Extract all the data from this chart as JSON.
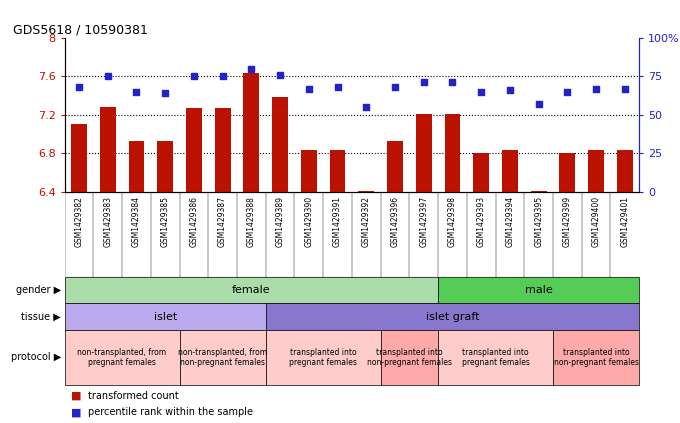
{
  "title": "GDS5618 / 10590381",
  "samples": [
    "GSM1429382",
    "GSM1429383",
    "GSM1429384",
    "GSM1429385",
    "GSM1429386",
    "GSM1429387",
    "GSM1429388",
    "GSM1429389",
    "GSM1429390",
    "GSM1429391",
    "GSM1429392",
    "GSM1429396",
    "GSM1429397",
    "GSM1429398",
    "GSM1429393",
    "GSM1429394",
    "GSM1429395",
    "GSM1429399",
    "GSM1429400",
    "GSM1429401"
  ],
  "bar_values": [
    7.11,
    7.28,
    6.93,
    6.93,
    7.27,
    7.27,
    7.63,
    7.38,
    6.84,
    6.84,
    6.41,
    6.93,
    7.21,
    7.21,
    6.8,
    6.84,
    6.41,
    6.8,
    6.84,
    6.84
  ],
  "dot_values": [
    68,
    75,
    65,
    64,
    75,
    75,
    80,
    76,
    67,
    68,
    55,
    68,
    71,
    71,
    65,
    66,
    57,
    65,
    67,
    67
  ],
  "bar_color": "#bb1100",
  "dot_color": "#2222cc",
  "ylim_left": [
    6.4,
    8.0
  ],
  "ylim_right": [
    0,
    100
  ],
  "yticks_left": [
    6.4,
    6.8,
    7.2,
    7.6,
    8.0
  ],
  "ytick_labels_left": [
    "6.4",
    "6.8",
    "7.2",
    "7.6",
    "8"
  ],
  "yticks_right": [
    0,
    25,
    50,
    75,
    100
  ],
  "ytick_labels_right": [
    "0",
    "25",
    "50",
    "75",
    "100%"
  ],
  "hlines": [
    6.8,
    7.2,
    7.6
  ],
  "gender_groups": [
    {
      "label": "female",
      "start": 0,
      "end": 13,
      "color": "#aaddaa"
    },
    {
      "label": "male",
      "start": 13,
      "end": 20,
      "color": "#55cc55"
    }
  ],
  "tissue_groups": [
    {
      "label": "islet",
      "start": 0,
      "end": 7,
      "color": "#bbaaee"
    },
    {
      "label": "islet graft",
      "start": 7,
      "end": 20,
      "color": "#8877cc"
    }
  ],
  "protocol_groups": [
    {
      "label": "non-transplanted, from\npregnant females",
      "start": 0,
      "end": 4,
      "color": "#ffcccc"
    },
    {
      "label": "non-transplanted, from\nnon-pregnant females",
      "start": 4,
      "end": 7,
      "color": "#ffcccc"
    },
    {
      "label": "transplanted into\npregnant females",
      "start": 7,
      "end": 11,
      "color": "#ffcccc"
    },
    {
      "label": "transplanted into\nnon-pregnant females",
      "start": 11,
      "end": 13,
      "color": "#ffaaaa"
    },
    {
      "label": "transplanted into\npregnant females",
      "start": 13,
      "end": 17,
      "color": "#ffcccc"
    },
    {
      "label": "transplanted into\nnon-pregnant females",
      "start": 17,
      "end": 20,
      "color": "#ffaaaa"
    }
  ],
  "legend_bar_label": "transformed count",
  "legend_dot_label": "percentile rank within the sample"
}
